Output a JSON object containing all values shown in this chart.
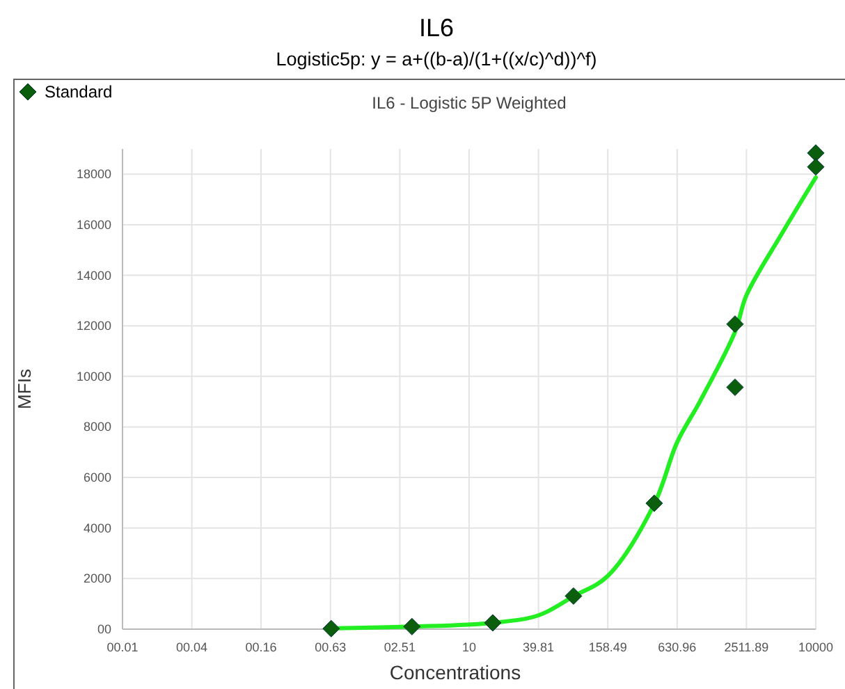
{
  "chart_data": {
    "type": "scatter",
    "title": "IL6",
    "subtitle": "Logistic5p: y = a+((b-a)/(1+((x/c)^d))^f)",
    "annotations": [
      "IL6 - Logistic 5P Weighted"
    ],
    "xlabel": "Concentrations",
    "ylabel": "MFIs",
    "log": "x",
    "xlim": [
      0.01,
      10000
    ],
    "xticks": [
      {
        "value": 0.01,
        "label": "00.01"
      },
      {
        "value": 0.0398,
        "label": "00.04"
      },
      {
        "value": 0.158,
        "label": "00.16"
      },
      {
        "value": 0.631,
        "label": "00.63"
      },
      {
        "value": 2.512,
        "label": "02.51"
      },
      10,
      39.81,
      158.49,
      630.96,
      2511.89,
      10000
    ],
    "ylim": [
      0,
      19000
    ],
    "yticks": [
      {
        "value": 0,
        "label": "00"
      },
      2000,
      4000,
      6000,
      8000,
      10000,
      12000,
      14000,
      16000,
      18000
    ],
    "grid": true,
    "legend": "top left",
    "series": [
      {
        "type": "line",
        "color": "#22ee22",
        "marker": "none",
        "line_style": "solid",
        "x": [
          0.64,
          3.2,
          16,
          40,
          80,
          158,
          400,
          631,
          1000,
          2000,
          2512,
          5000,
          10000
        ],
        "values": [
          30,
          100,
          250,
          550,
          1300,
          2100,
          4950,
          7390,
          9030,
          11760,
          13210,
          15590,
          17870
        ]
      },
      {
        "name": "Standard",
        "color": "#0b5e0b",
        "marker": "diamond",
        "x": [
          0.64,
          3.2,
          16,
          80,
          400,
          2000,
          2000,
          10000,
          10000
        ],
        "values": [
          20,
          100,
          250,
          1310,
          4980,
          12070,
          9570,
          18840,
          18290
        ]
      }
    ]
  }
}
